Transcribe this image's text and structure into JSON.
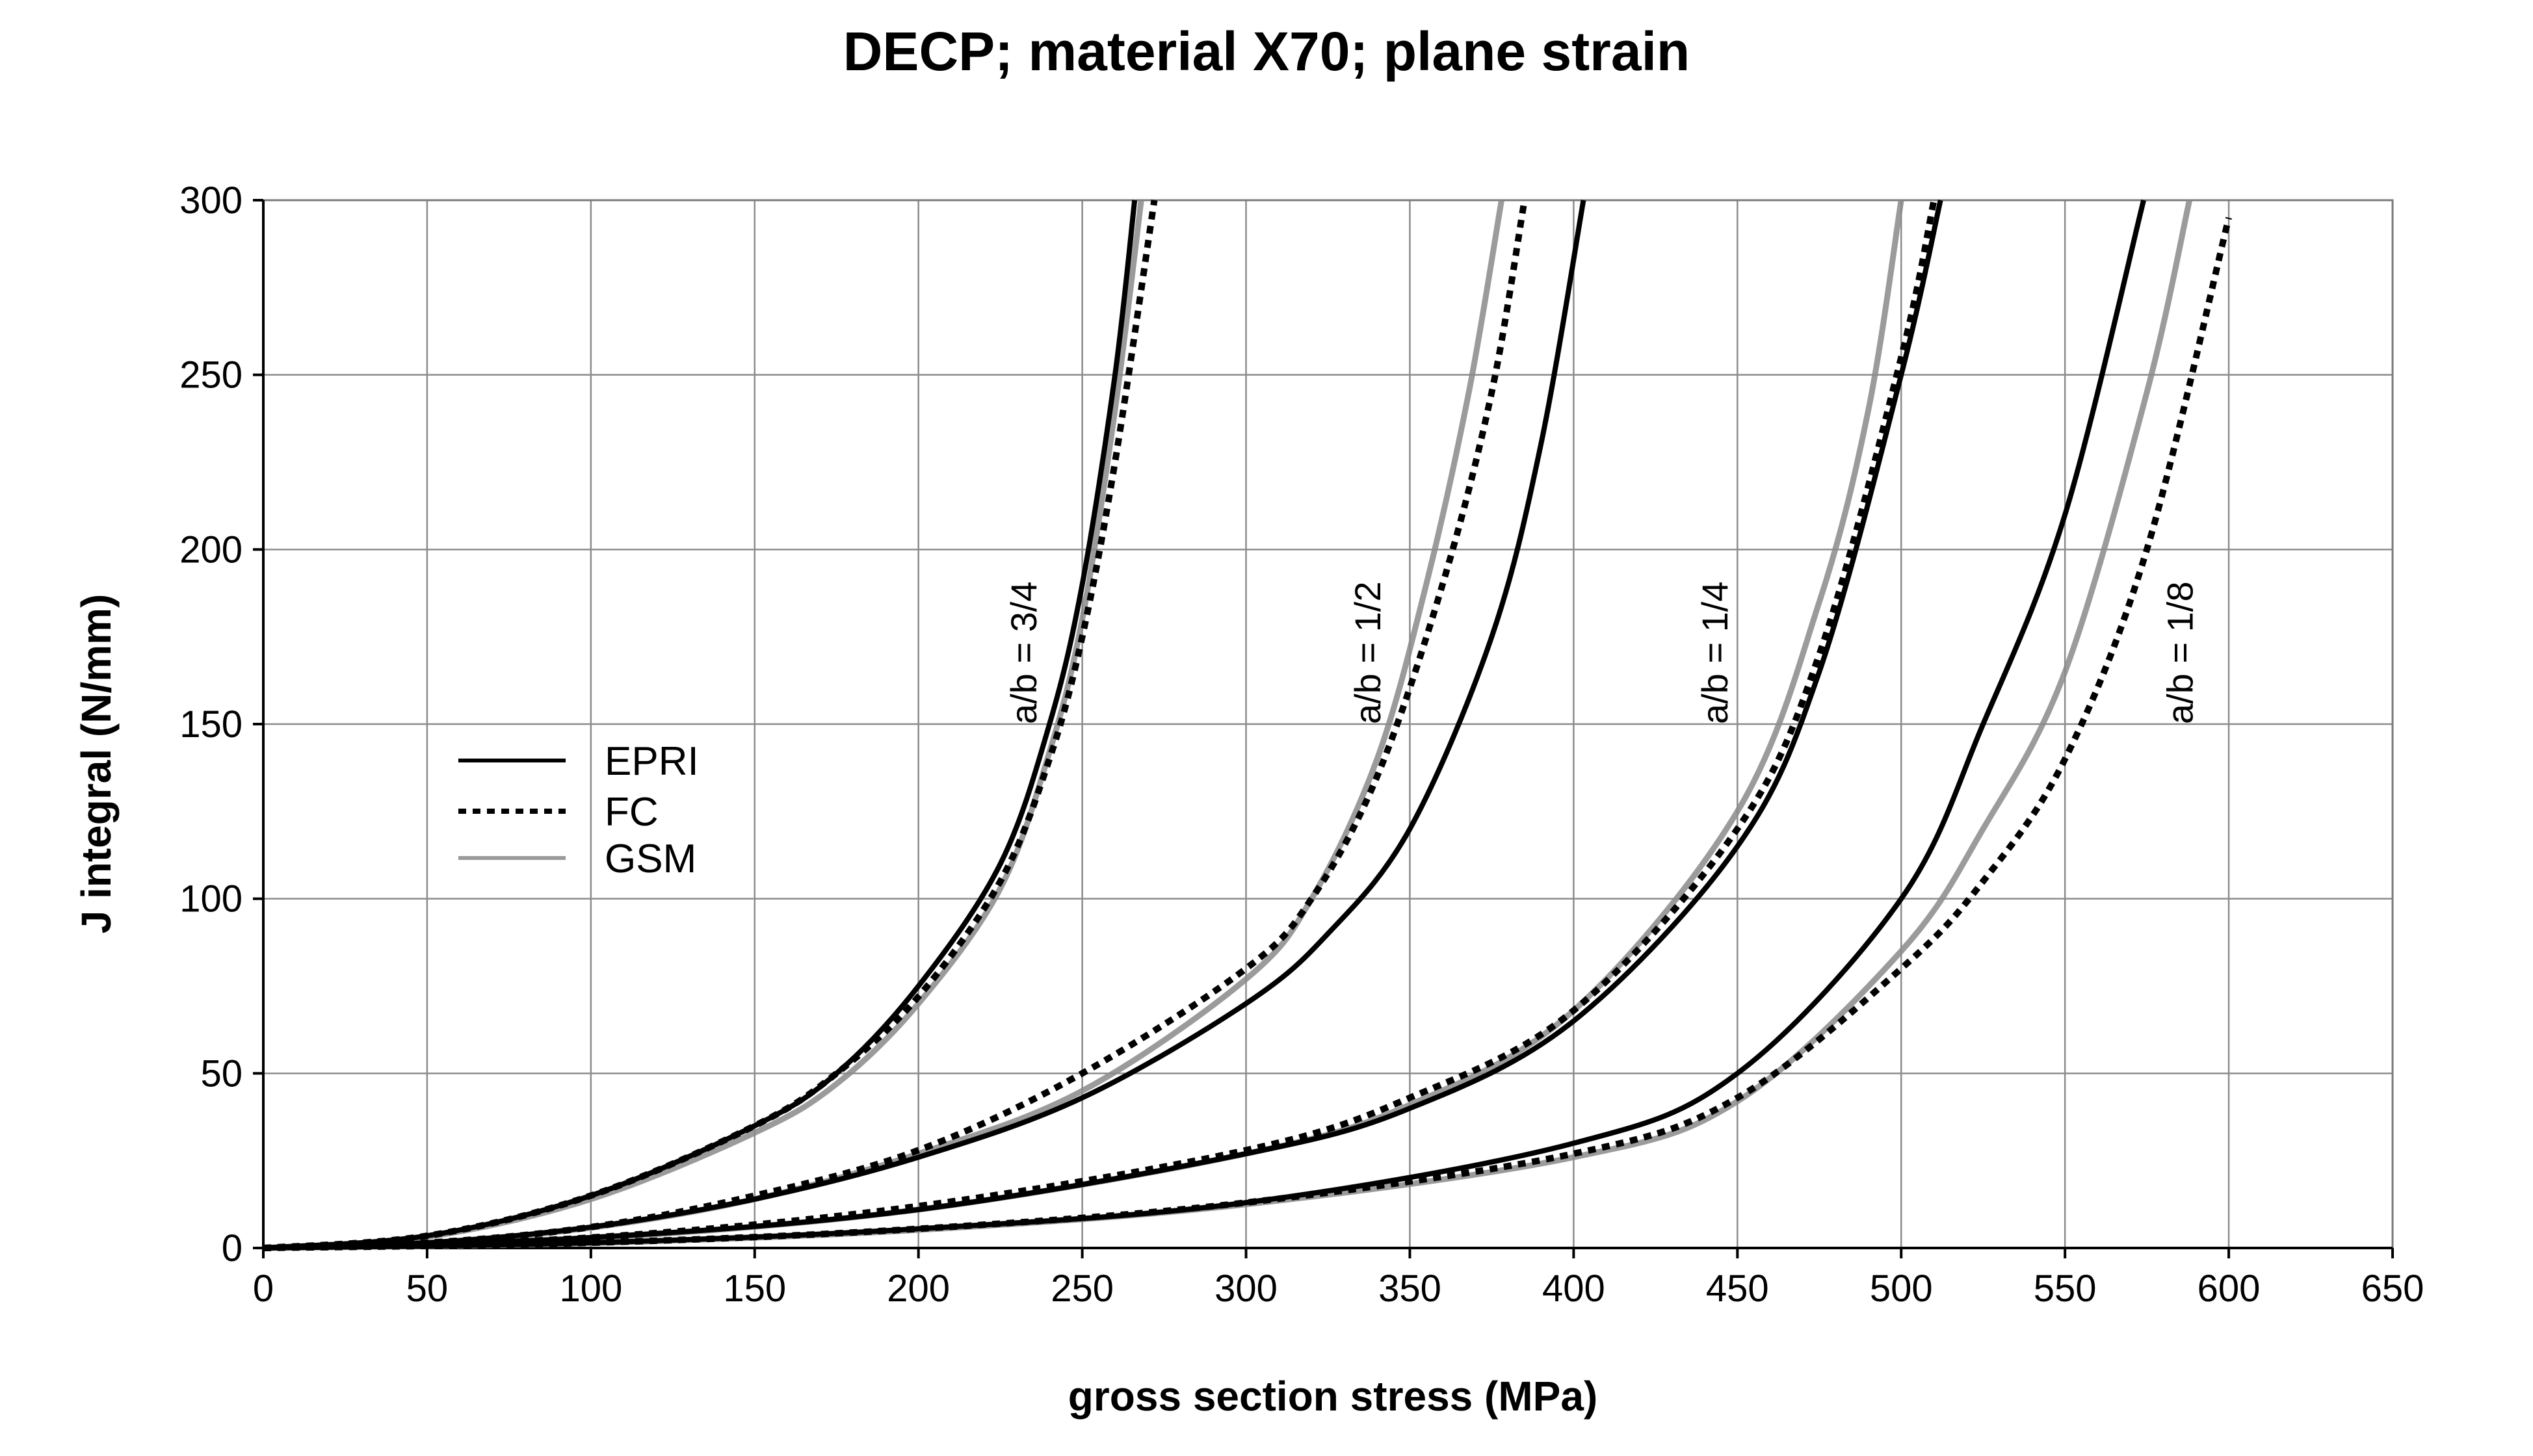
{
  "chart_data": {
    "type": "line",
    "title": "DECP; material X70; plane strain",
    "xlabel": "gross section stress (MPa)",
    "ylabel": "J integral (N/mm)",
    "xlim": [
      0,
      650
    ],
    "ylim": [
      0,
      300
    ],
    "xticks": [
      "0",
      "50",
      "100",
      "150",
      "200",
      "250",
      "300",
      "350",
      "400",
      "450",
      "500",
      "550",
      "600",
      "650"
    ],
    "yticks": [
      "0",
      "50",
      "100",
      "150",
      "200",
      "250",
      "300"
    ],
    "grid": true,
    "legend": {
      "placement": "middle-left",
      "entries": [
        {
          "label": "EPRI",
          "style": "solid",
          "color": "#000000"
        },
        {
          "label": "FC",
          "style": "dotted",
          "color": "#000000"
        },
        {
          "label": "GSM",
          "style": "solid",
          "color": "#8a8a8a"
        }
      ]
    },
    "annotations": [
      {
        "text": "a/b = 3/4",
        "x": 232,
        "y": 150
      },
      {
        "text": "a/b = 1/2",
        "x": 337,
        "y": 150
      },
      {
        "text": "a/b = 1/4",
        "x": 443,
        "y": 150
      },
      {
        "text": "a/b = 1/8",
        "x": 585,
        "y": 150
      }
    ],
    "series": [
      {
        "name": "EPRI",
        "group": "a/b = 3/4",
        "style": "solid",
        "color": "#000000",
        "x": [
          0,
          50,
          100,
          150,
          175,
          200,
          225,
          240,
          250,
          260,
          266
        ],
        "y": [
          0,
          3.5,
          15,
          35,
          50,
          75,
          110,
          150,
          190,
          250,
          300
        ]
      },
      {
        "name": "FC",
        "group": "a/b = 3/4",
        "style": "dotted",
        "color": "#000000",
        "x": [
          0,
          50,
          100,
          150,
          175,
          200,
          225,
          240,
          250,
          260,
          272
        ],
        "y": [
          0,
          3.5,
          15,
          35,
          50,
          72,
          105,
          140,
          175,
          225,
          300
        ]
      },
      {
        "name": "GSM",
        "group": "a/b = 3/4",
        "style": "solid",
        "color": "#8a8a8a",
        "x": [
          0,
          50,
          100,
          150,
          175,
          200,
          225,
          240,
          250,
          260,
          268
        ],
        "y": [
          0,
          3.2,
          14,
          33,
          47,
          70,
          103,
          142,
          180,
          240,
          300
        ]
      },
      {
        "name": "EPRI",
        "group": "a/b = 1/2",
        "style": "solid",
        "color": "#000000",
        "x": [
          0,
          50,
          100,
          150,
          200,
          250,
          300,
          325,
          350,
          375,
          390,
          403
        ],
        "y": [
          0,
          1.5,
          6,
          14,
          26,
          43,
          70,
          90,
          120,
          175,
          230,
          300
        ]
      },
      {
        "name": "FC",
        "group": "a/b = 1/2",
        "style": "dotted",
        "color": "#000000",
        "x": [
          0,
          50,
          100,
          150,
          200,
          250,
          300,
          320,
          340,
          360,
          375,
          385
        ],
        "y": [
          0,
          1.5,
          6,
          15,
          28,
          50,
          80,
          100,
          135,
          190,
          245,
          300
        ]
      },
      {
        "name": "GSM",
        "group": "a/b = 1/2",
        "style": "solid",
        "color": "#8a8a8a",
        "x": [
          0,
          50,
          100,
          150,
          200,
          250,
          300,
          320,
          340,
          355,
          368,
          378
        ],
        "y": [
          0,
          1.4,
          5.8,
          14,
          27,
          45,
          77,
          100,
          140,
          190,
          245,
          300
        ]
      },
      {
        "name": "EPRI",
        "group": "a/b = 1/4",
        "style": "solid",
        "color": "#000000",
        "x": [
          0,
          100,
          200,
          300,
          350,
          400,
          450,
          475,
          500,
          512
        ],
        "y": [
          0,
          3,
          11,
          27,
          40,
          65,
          115,
          165,
          250,
          300
        ]
      },
      {
        "name": "FC",
        "group": "a/b = 1/4",
        "style": "dotted",
        "color": "#000000",
        "x": [
          0,
          100,
          200,
          300,
          350,
          400,
          450,
          475,
          500,
          510
        ],
        "y": [
          0,
          3,
          12,
          28,
          43,
          68,
          120,
          170,
          255,
          300
        ]
      },
      {
        "name": "GSM",
        "group": "a/b = 1/4",
        "style": "solid",
        "color": "#8a8a8a",
        "x": [
          0,
          100,
          200,
          300,
          350,
          400,
          450,
          475,
          490,
          500
        ],
        "y": [
          0,
          2.8,
          11,
          27,
          41,
          68,
          125,
          185,
          240,
          300
        ]
      },
      {
        "name": "EPRI",
        "group": "a/b = 1/8",
        "style": "solid",
        "color": "#000000",
        "x": [
          0,
          100,
          200,
          300,
          400,
          450,
          500,
          525,
          550,
          574
        ],
        "y": [
          0,
          1.5,
          5.5,
          13,
          30,
          50,
          100,
          150,
          210,
          300
        ]
      },
      {
        "name": "FC",
        "group": "a/b = 1/8",
        "style": "dotted",
        "color": "#000000",
        "x": [
          0,
          100,
          200,
          300,
          400,
          450,
          500,
          525,
          550,
          575,
          600
        ],
        "y": [
          0,
          1.5,
          5.5,
          13,
          27,
          43,
          80,
          105,
          140,
          200,
          295
        ]
      },
      {
        "name": "GSM",
        "group": "a/b = 1/8",
        "style": "solid",
        "color": "#8a8a8a",
        "x": [
          0,
          100,
          200,
          300,
          400,
          450,
          500,
          525,
          550,
          575,
          588
        ],
        "y": [
          0,
          1.4,
          5.2,
          12.5,
          26,
          42,
          85,
          120,
          165,
          245,
          300
        ]
      }
    ]
  }
}
